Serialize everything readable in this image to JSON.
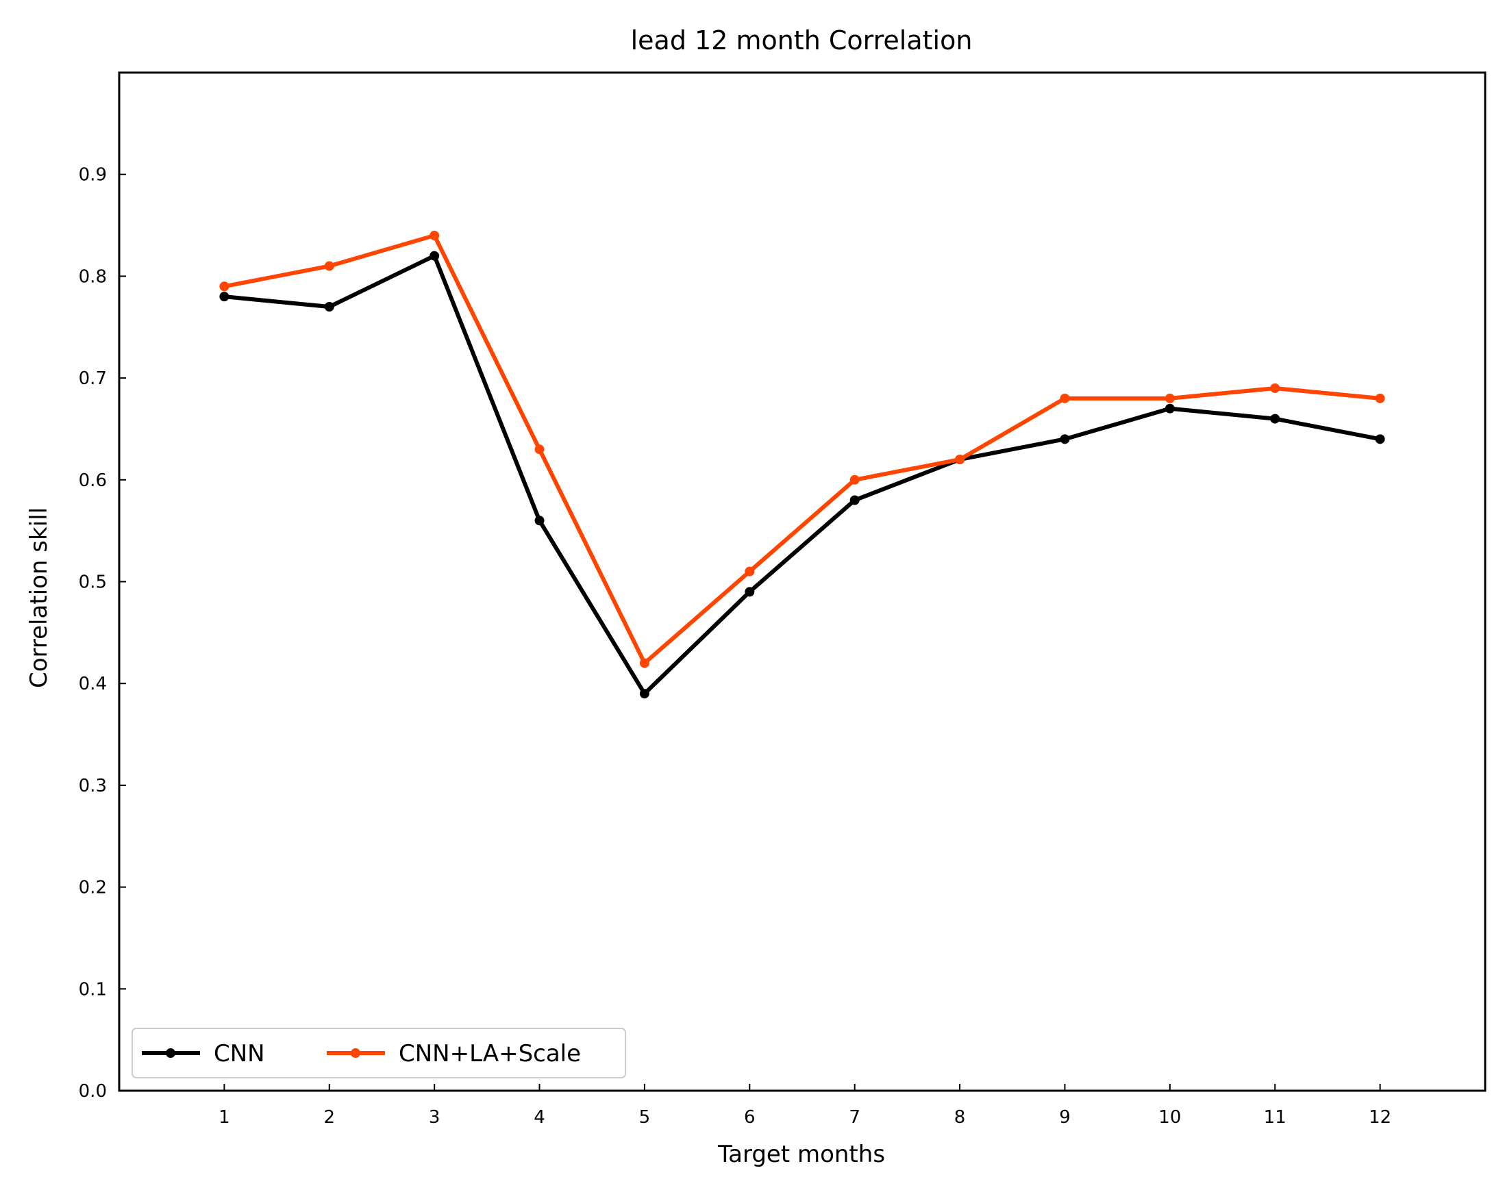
{
  "chart_data": {
    "type": "line",
    "title": "lead 12 month Correlation",
    "xlabel": "Target months",
    "ylabel": "Correlation skill",
    "x": [
      1,
      2,
      3,
      4,
      5,
      6,
      7,
      8,
      9,
      10,
      11,
      12
    ],
    "xticks": [
      "1",
      "2",
      "3",
      "4",
      "5",
      "6",
      "7",
      "8",
      "9",
      "10",
      "11",
      "12"
    ],
    "xlim": [
      0,
      13
    ],
    "ylim": [
      0,
      1.0
    ],
    "yticks": [
      "0.0",
      "0.1",
      "0.2",
      "0.3",
      "0.4",
      "0.5",
      "0.6",
      "0.7",
      "0.8",
      "0.9"
    ],
    "grid": false,
    "legend_position": "lower-left",
    "series": [
      {
        "name": "CNN",
        "color": "#000000",
        "values": [
          0.78,
          0.77,
          0.82,
          0.56,
          0.39,
          0.49,
          0.58,
          0.62,
          0.64,
          0.67,
          0.66,
          0.64
        ]
      },
      {
        "name": "CNN+LA+Scale",
        "color": "#ff4500",
        "values": [
          0.79,
          0.81,
          0.84,
          0.63,
          0.42,
          0.51,
          0.6,
          0.62,
          0.68,
          0.68,
          0.69,
          0.68
        ]
      }
    ]
  }
}
